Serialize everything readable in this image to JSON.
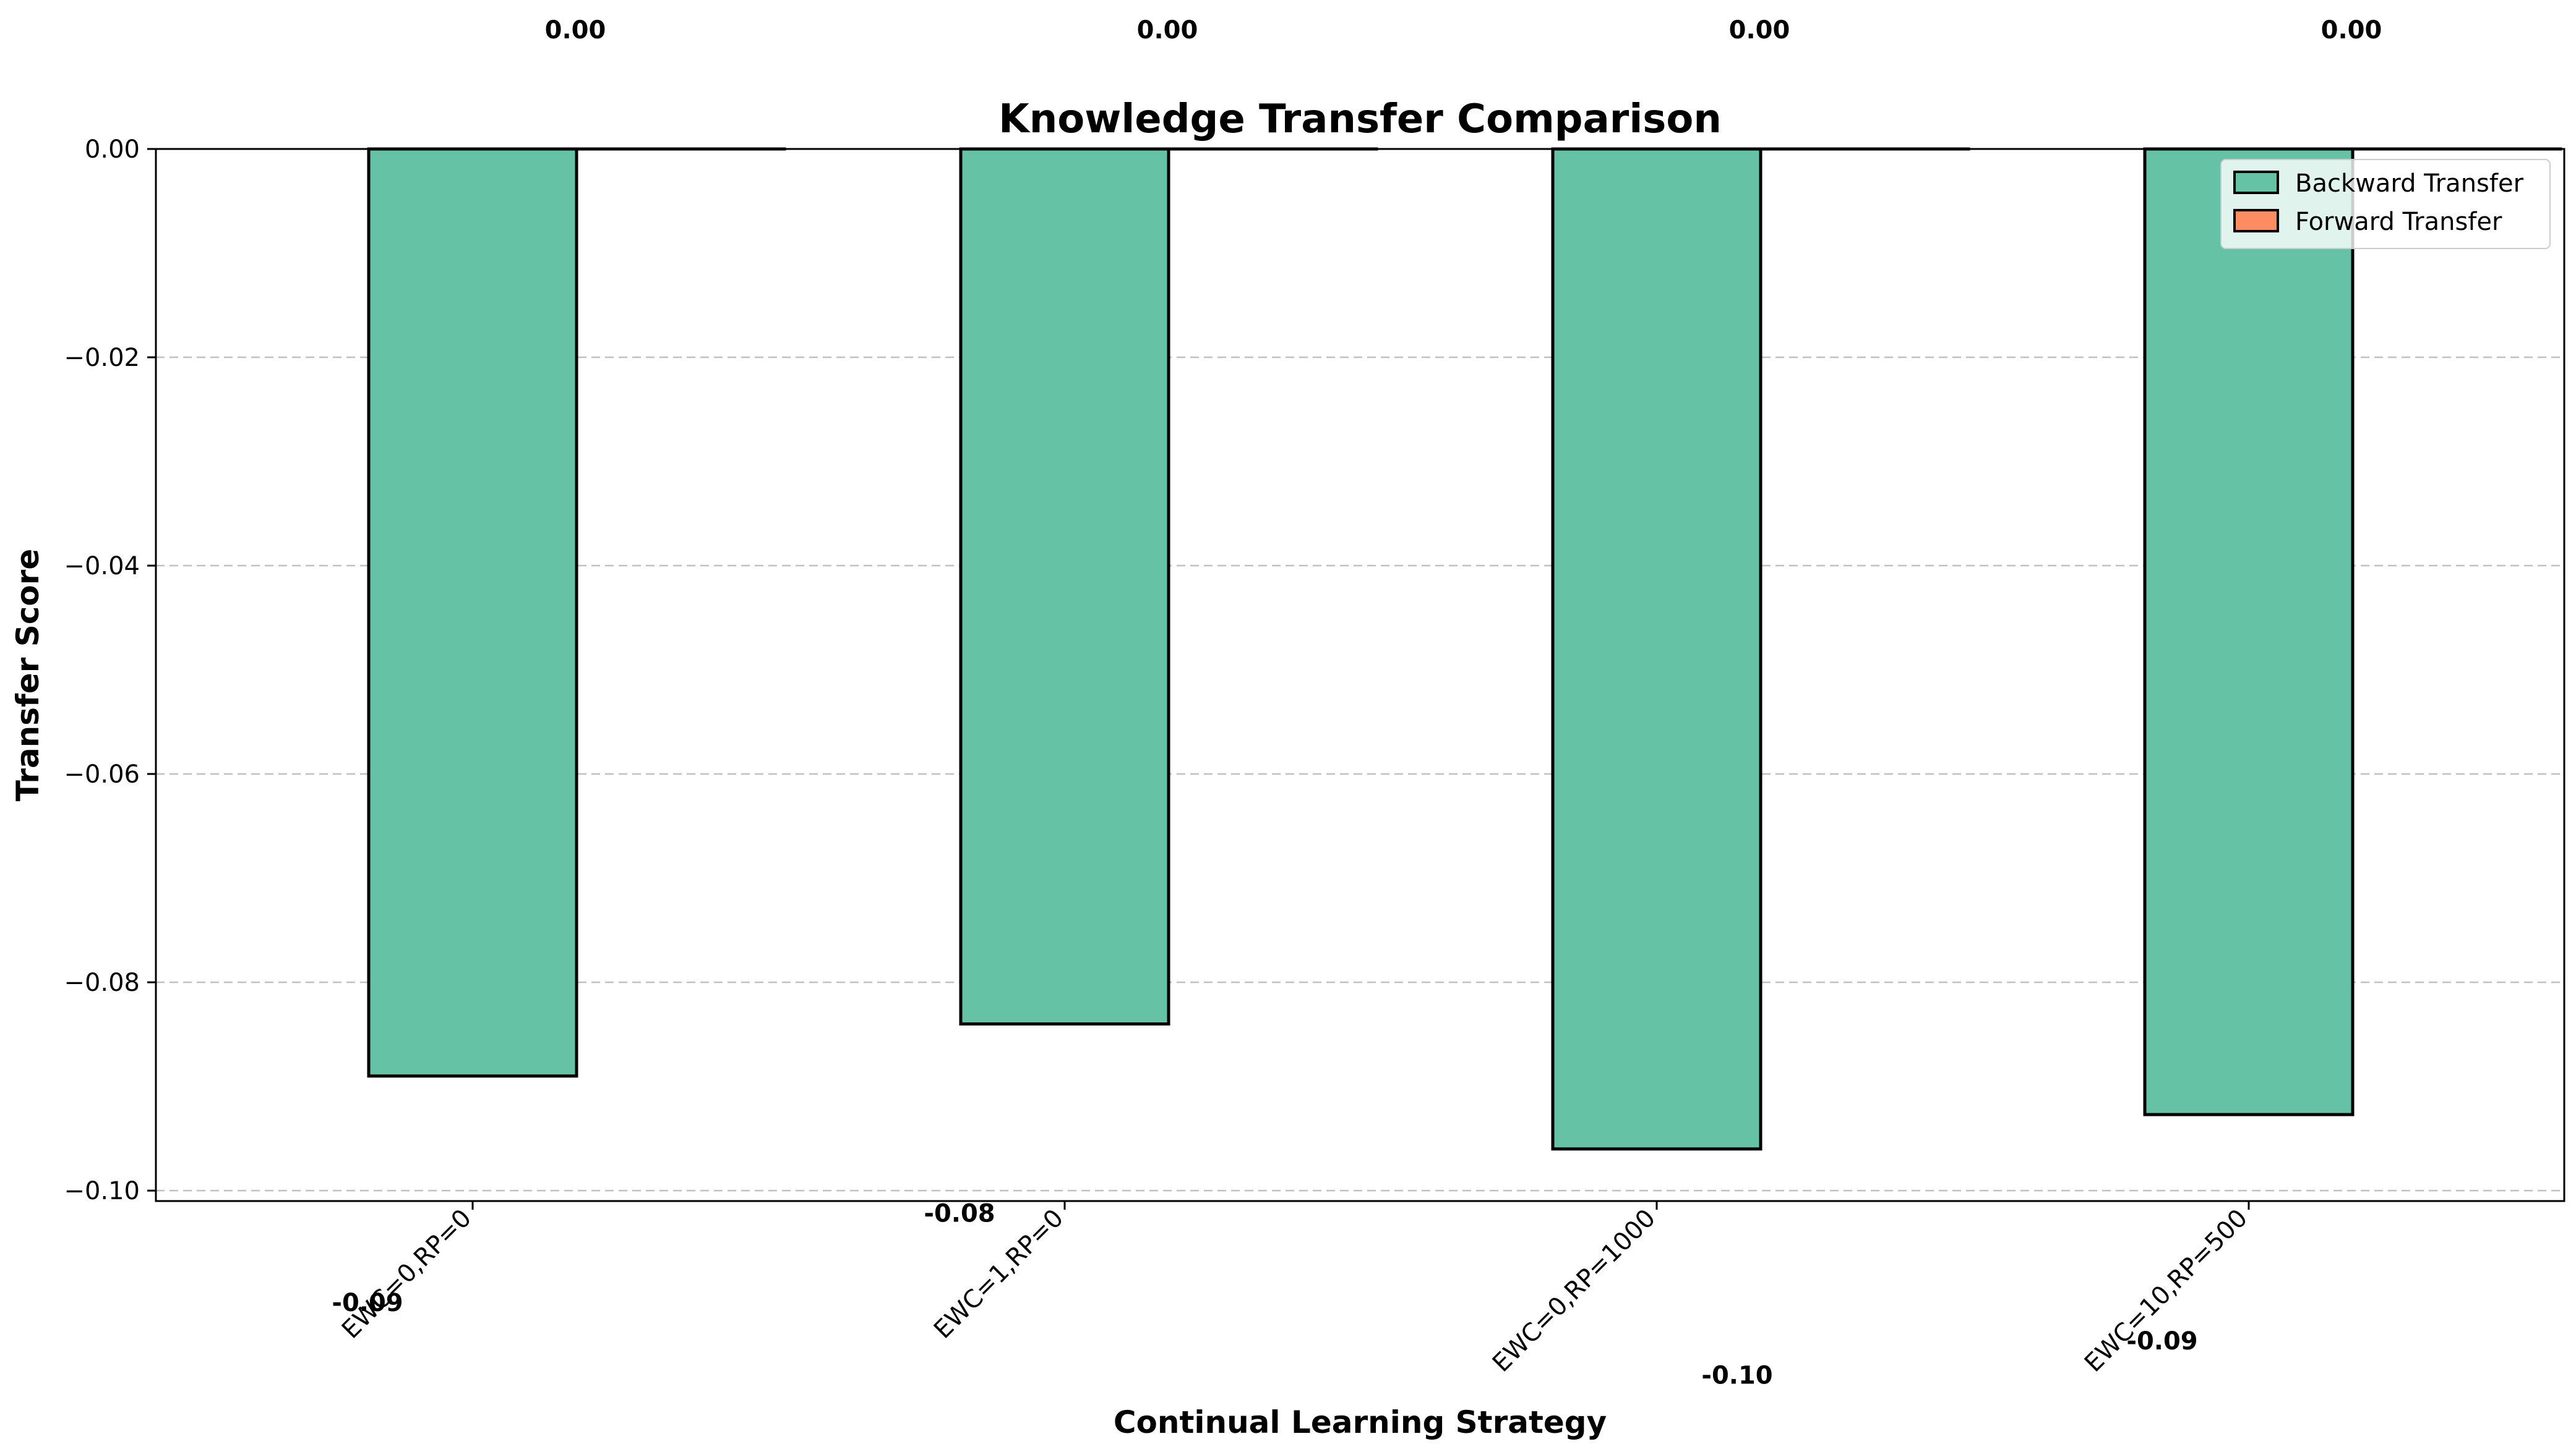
{
  "chart_data": {
    "type": "bar",
    "title": "Knowledge Transfer Comparison",
    "xlabel": "Continual Learning Strategy",
    "ylabel": "Transfer Score",
    "categories": [
      "EWC=0,RP=0",
      "EWC=1,RP=0",
      "EWC=0,RP=1000",
      "EWC=10,RP=500"
    ],
    "series": [
      {
        "name": "Backward Transfer",
        "values": [
          -0.089,
          -0.084,
          -0.096,
          -0.0927
        ],
        "labels": [
          "-0.09",
          "-0.08",
          "-0.10",
          "-0.09"
        ],
        "color": "#66c2a5"
      },
      {
        "name": "Forward Transfer",
        "values": [
          0.0,
          0.0,
          0.0,
          0.0
        ],
        "labels": [
          "0.00",
          "0.00",
          "0.00",
          "0.00"
        ],
        "color": "#fc8d62"
      }
    ],
    "ylim": [
      -0.101,
      0.0
    ],
    "yticks": [
      0.0,
      -0.02,
      -0.04,
      -0.06,
      -0.08,
      -0.1
    ],
    "ytick_labels": [
      "0.00",
      "−0.02",
      "−0.04",
      "−0.06",
      "−0.08",
      "−0.10"
    ],
    "grid": "y-dashed",
    "legend_position": "top-right"
  }
}
